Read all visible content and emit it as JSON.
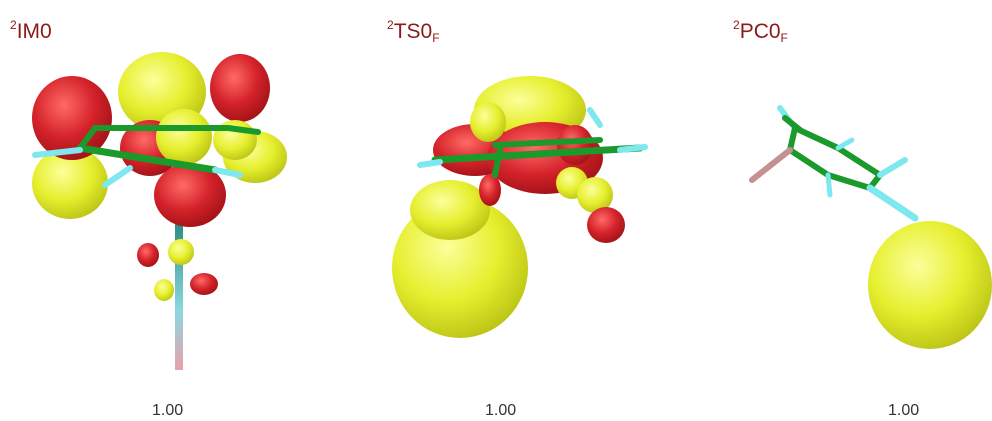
{
  "colors": {
    "positive_lobe": "#e8f030",
    "negative_lobe": "#d8262a",
    "carbon_bond": "#1a9a2a",
    "hydrogen_bond": "#7de8f0",
    "label_color": "#8b1a1a"
  },
  "panels": [
    {
      "id": "IM0",
      "label_sup": "2",
      "label_main": "IM0",
      "label_sub": "",
      "value": "1.00"
    },
    {
      "id": "TS0F",
      "label_sup": "2",
      "label_main": "TS0",
      "label_sub": "F",
      "value": "1.00"
    },
    {
      "id": "PC0F",
      "label_sup": "2",
      "label_main": "PC0",
      "label_sub": "F",
      "value": "1.00"
    }
  ]
}
